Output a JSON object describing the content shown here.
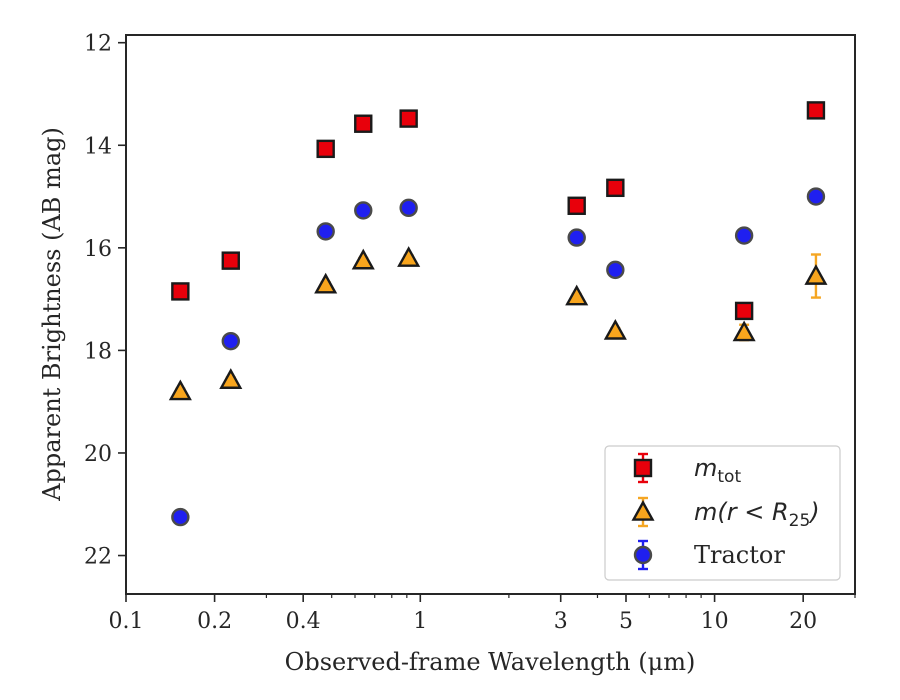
{
  "chart_data": {
    "type": "scatter",
    "xlabel": "Observed-frame Wavelength (μm)",
    "ylabel": "Apparent Brightness (AB mag)",
    "xscale": "log",
    "xlim": [
      0.1,
      30
    ],
    "ylim": [
      22.75,
      11.85
    ],
    "y_inverted": true,
    "x_ticks": [
      {
        "value": 0.1,
        "label": "0.1"
      },
      {
        "value": 0.2,
        "label": "0.2"
      },
      {
        "value": 0.4,
        "label": "0.4"
      },
      {
        "value": 1,
        "label": "1"
      },
      {
        "value": 3,
        "label": "3"
      },
      {
        "value": 5,
        "label": "5"
      },
      {
        "value": 10,
        "label": "10"
      },
      {
        "value": 20,
        "label": "20"
      }
    ],
    "y_ticks": [
      {
        "value": 12,
        "label": "12"
      },
      {
        "value": 14,
        "label": "14"
      },
      {
        "value": 16,
        "label": "16"
      },
      {
        "value": 18,
        "label": "18"
      },
      {
        "value": 20,
        "label": "20"
      },
      {
        "value": 22,
        "label": "22"
      }
    ],
    "grid": false,
    "legend_position": "bottom-right",
    "series": [
      {
        "name_main": "m",
        "name_sub": "tot",
        "name_rest": "",
        "marker": "square",
        "color": "#e8000b",
        "errcolor": "#e8000b",
        "points": [
          {
            "x": 0.153,
            "y": 16.85,
            "err": 0.05
          },
          {
            "x": 0.227,
            "y": 16.25,
            "err": 0.05
          },
          {
            "x": 0.477,
            "y": 14.07,
            "err": 0.05
          },
          {
            "x": 0.64,
            "y": 13.58,
            "err": 0.05
          },
          {
            "x": 0.913,
            "y": 13.48,
            "err": 0.05
          },
          {
            "x": 3.4,
            "y": 15.18,
            "err": 0.05
          },
          {
            "x": 4.6,
            "y": 14.83,
            "err": 0.05
          },
          {
            "x": 12.6,
            "y": 17.23,
            "err": 0.05
          },
          {
            "x": 22.1,
            "y": 13.32,
            "err": 0.05
          }
        ]
      },
      {
        "name_main": "m(r < R",
        "name_sub": "25",
        "name_rest": ")",
        "marker": "triangle",
        "color": "#f8a51d",
        "errcolor": "#f5a623",
        "points": [
          {
            "x": 0.153,
            "y": 18.8,
            "err": 0.05
          },
          {
            "x": 0.227,
            "y": 18.58,
            "err": 0.05
          },
          {
            "x": 0.477,
            "y": 16.72,
            "err": 0.05
          },
          {
            "x": 0.64,
            "y": 16.25,
            "err": 0.05
          },
          {
            "x": 0.913,
            "y": 16.2,
            "err": 0.05
          },
          {
            "x": 3.4,
            "y": 16.95,
            "err": 0.05
          },
          {
            "x": 4.6,
            "y": 17.62,
            "err": 0.05
          },
          {
            "x": 12.6,
            "y": 17.65,
            "err": 0.15
          },
          {
            "x": 22.1,
            "y": 16.55,
            "err": 0.42
          }
        ]
      },
      {
        "name_main": "Tractor",
        "name_sub": "",
        "name_rest": "",
        "marker": "circle",
        "color": "#1f1ff0",
        "errcolor": "#1f1ff0",
        "points": [
          {
            "x": 0.153,
            "y": 21.25,
            "err": 0.05
          },
          {
            "x": 0.227,
            "y": 17.82,
            "err": 0.05
          },
          {
            "x": 0.477,
            "y": 15.68,
            "err": 0.05
          },
          {
            "x": 0.64,
            "y": 15.27,
            "err": 0.05
          },
          {
            "x": 0.913,
            "y": 15.22,
            "err": 0.05
          },
          {
            "x": 3.4,
            "y": 15.8,
            "err": 0.05
          },
          {
            "x": 4.6,
            "y": 16.43,
            "err": 0.05
          },
          {
            "x": 12.6,
            "y": 15.76,
            "err": 0.05
          },
          {
            "x": 22.1,
            "y": 15.0,
            "err": 0.05
          }
        ]
      }
    ]
  }
}
